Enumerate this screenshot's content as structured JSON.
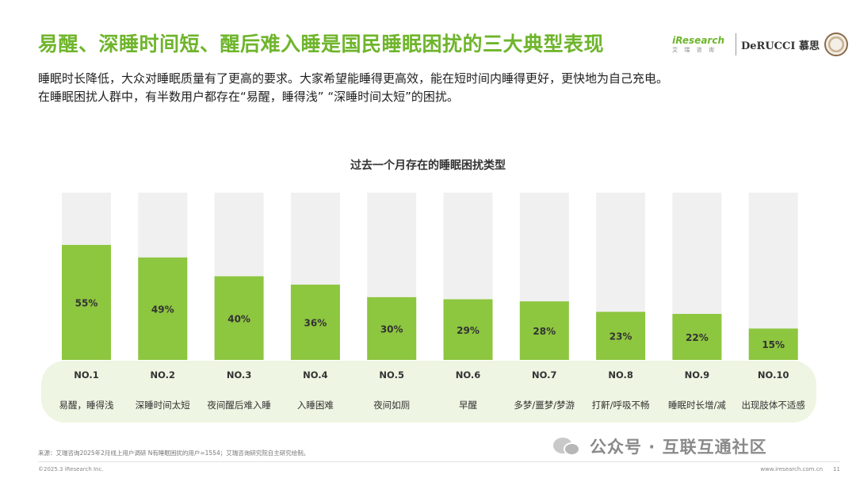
{
  "header": {
    "title": "易醒、深睡时间短、醒后难入睡是国民睡眠困扰的三大典型表现",
    "intro_line1": "睡眠时长降低，大众对睡眠质量有了更高的要求。大家希望能睡得更高效，能在短时间内睡得更好，更快地为自己充电。",
    "intro_line2": "在睡眠困扰人群中，有半数用户都存在“易醒，睡得浅” “深睡时间太短”的困扰。"
  },
  "logos": {
    "iresearch_brand": "iResearch",
    "iresearch_sub": "艾 瑞 咨 询",
    "derucci": "DeRUCCI 慕思"
  },
  "chart_data": {
    "type": "bar",
    "title": "过去一个月存在的睡眠困扰类型",
    "ranks": [
      "NO.1",
      "NO.2",
      "NO.3",
      "NO.4",
      "NO.5",
      "NO.6",
      "NO.7",
      "NO.8",
      "NO.9",
      "NO.10"
    ],
    "categories": [
      "易醒，睡得浅",
      "深睡时间太短",
      "夜间醒后难入睡",
      "入睡困难",
      "夜间如厕",
      "早醒",
      "多梦/噩梦/梦游",
      "打鼾/呼吸不畅",
      "睡眠时长增/减",
      "出现肢体不适感"
    ],
    "values": [
      55,
      49,
      40,
      36,
      30,
      29,
      28,
      23,
      22,
      15
    ],
    "value_labels": [
      "55%",
      "49%",
      "40%",
      "36%",
      "30%",
      "29%",
      "28%",
      "23%",
      "22%",
      "15%"
    ],
    "ylim": [
      0,
      80
    ],
    "unit": "%",
    "grid": false,
    "bar_color": "#8dc63f",
    "track_color": "#f0f0f0",
    "label_panel_color": "#eef5e2"
  },
  "footer": {
    "source": "来源：艾瑞咨询2025年2月线上用户调研 N有睡眠困扰的用户=1554；艾瑞咨询研究院自主研究绘制。",
    "copyright": "©2025.3 iResearch Inc.",
    "url": "www.iresearch.com.cn",
    "page": "11",
    "watermark": "公众号 · 互联互通社区"
  }
}
